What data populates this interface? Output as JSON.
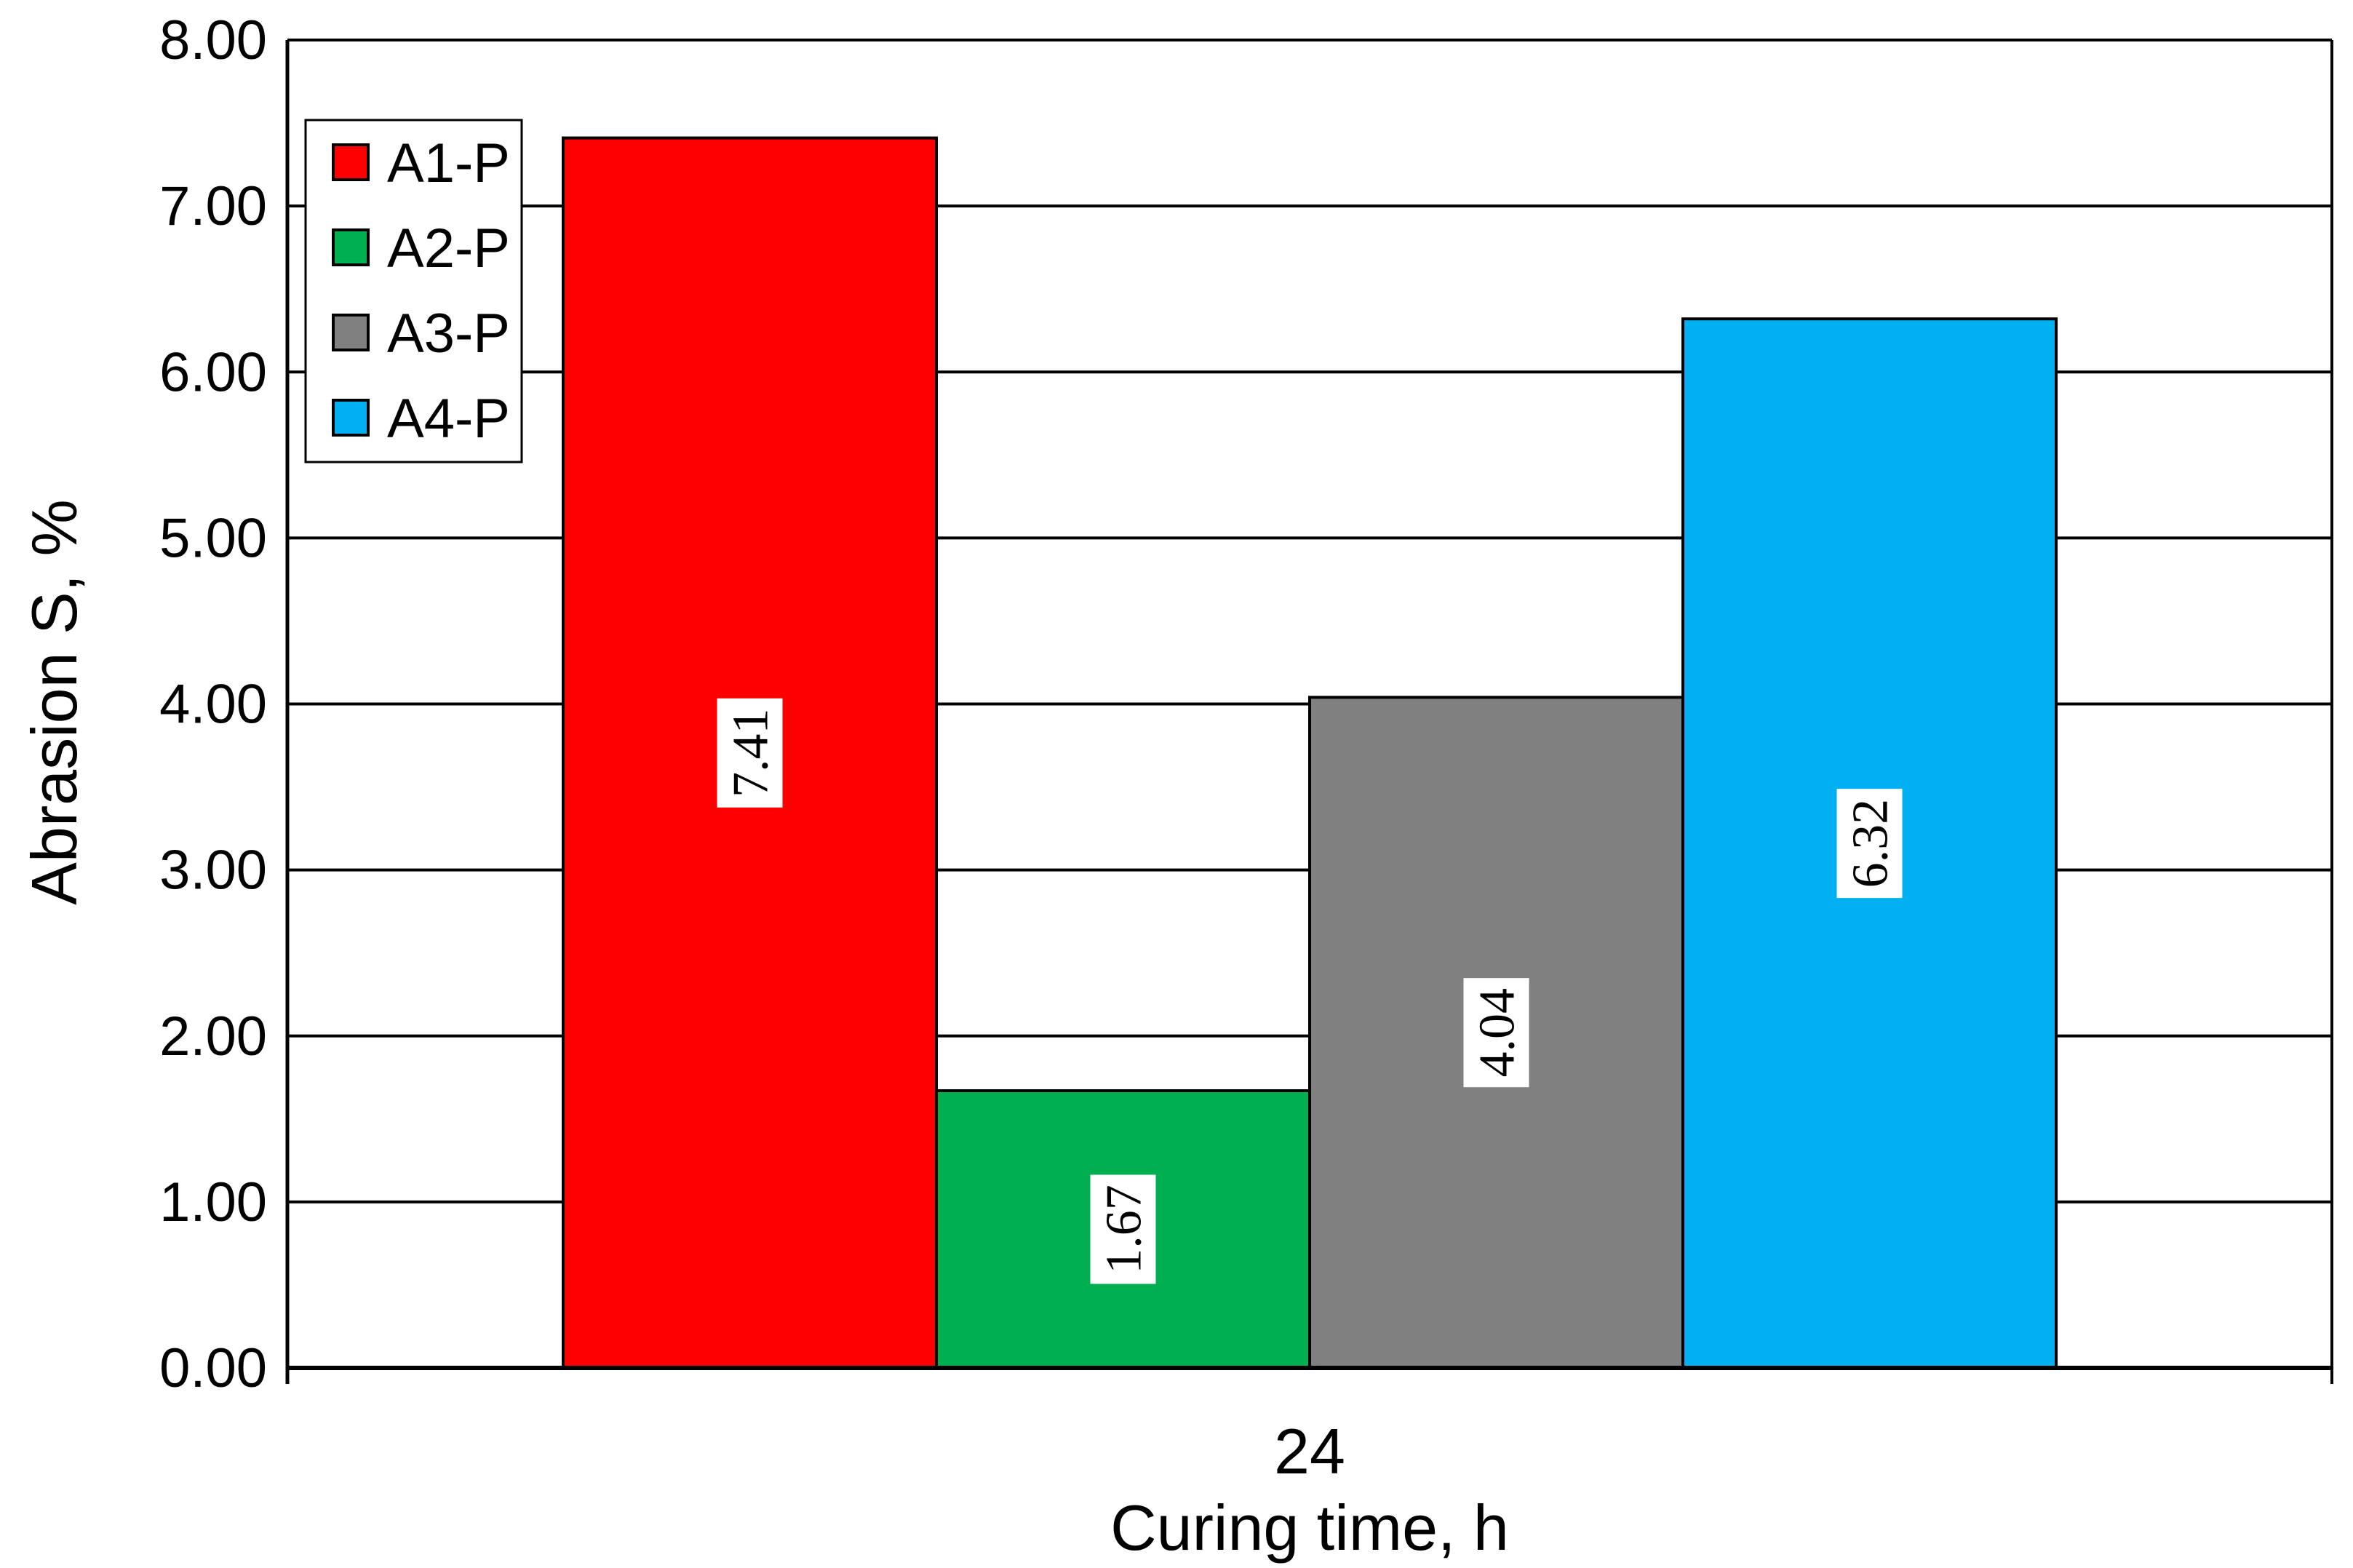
{
  "chart_data": {
    "type": "bar",
    "categories": [
      "24"
    ],
    "series": [
      {
        "name": "A1-P",
        "values": [
          7.41
        ],
        "color": "#ff0000"
      },
      {
        "name": "A2-P",
        "values": [
          1.67
        ],
        "color": "#00b050"
      },
      {
        "name": "A3-P",
        "values": [
          4.04
        ],
        "color": "#808080"
      },
      {
        "name": "A4-P",
        "values": [
          6.32
        ],
        "color": "#00b0f0"
      }
    ],
    "data_labels": [
      "7.41",
      "1.67",
      "4.04",
      "6.32"
    ],
    "xlabel": "Curing time, h",
    "ylabel": "Abrasion S, %",
    "ylim": [
      0,
      8
    ],
    "yticks": [
      0,
      1,
      2,
      3,
      4,
      5,
      6,
      7,
      8
    ],
    "ytick_labels": [
      "0.00",
      "1.00",
      "2.00",
      "3.00",
      "4.00",
      "5.00",
      "6.00",
      "7.00",
      "8.00"
    ],
    "grid": true,
    "legend_position": "top-left"
  }
}
